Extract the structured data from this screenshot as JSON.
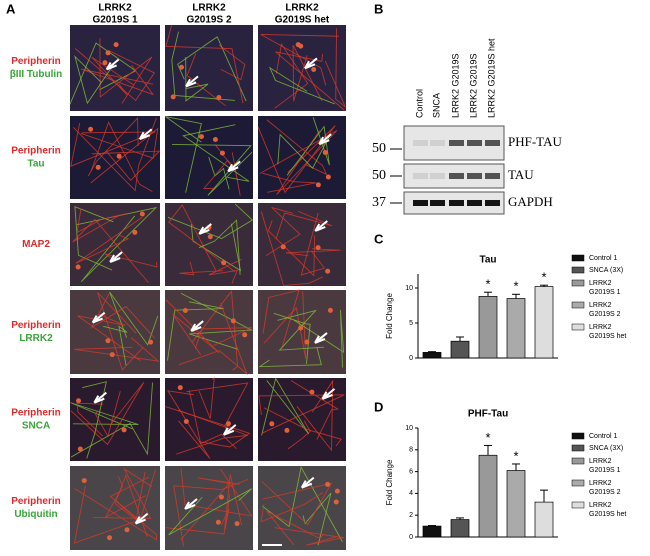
{
  "panel_a": {
    "label": "A",
    "columns": [
      [
        "LRRK2",
        "G2019S 1"
      ],
      [
        "LRRK2",
        "G2019S 2"
      ],
      [
        "LRRK2",
        "G2019S  het"
      ]
    ],
    "rows": [
      [
        {
          "text": "Peripherin",
          "color": "#d92b2b"
        },
        {
          "text": "βIII Tubulin",
          "color": "#3aa33a"
        }
      ],
      [
        {
          "text": "Peripherin",
          "color": "#d92b2b"
        },
        {
          "text": "Tau",
          "color": "#3aa33a"
        }
      ],
      [
        {
          "text": "MAP2",
          "color": "#d92b2b"
        }
      ],
      [
        {
          "text": "Peripherin",
          "color": "#d92b2b"
        },
        {
          "text": "LRRK2",
          "color": "#3aa33a"
        }
      ],
      [
        {
          "text": "Peripherin",
          "color": "#d92b2b"
        },
        {
          "text": "SNCA",
          "color": "#3aa33a"
        }
      ],
      [
        {
          "text": "Peripherin",
          "color": "#d92b2b"
        },
        {
          "text": "Ubiquitin",
          "color": "#3aa33a"
        }
      ]
    ]
  },
  "panel_b": {
    "label": "B",
    "lanes": [
      "Control",
      "SNCA",
      "LRRK2 G2019S",
      "LRRK2 G2019S",
      "LRRK2 G2019S het"
    ],
    "blots": [
      {
        "marker": "50",
        "name": "PHF-TAU"
      },
      {
        "marker": "50",
        "name": "TAU"
      },
      {
        "marker": "37",
        "name": "GAPDH"
      }
    ]
  },
  "chart_data": [
    {
      "type": "bar",
      "label": "C",
      "title": "Tau",
      "ylabel": "Fold Change",
      "categories": [
        [
          "Control 1"
        ],
        [
          "SNCA (3X)"
        ],
        [
          "LRRK2",
          "G2019S 1"
        ],
        [
          "LRRK2",
          "G2019S 2"
        ],
        [
          "LRRK2",
          "G2019S het"
        ]
      ],
      "values": [
        0.8,
        2.4,
        8.8,
        8.5,
        10.2
      ],
      "errors": [
        0.1,
        0.6,
        0.6,
        0.6,
        0.2
      ],
      "significance": [
        null,
        null,
        "*",
        "*",
        "*"
      ],
      "colors": [
        "#111111",
        "#555555",
        "#999999",
        "#aaaaaa",
        "#dddddd"
      ],
      "ylim": [
        0,
        12
      ],
      "yticks": [
        0,
        5,
        10
      ]
    },
    {
      "type": "bar",
      "label": "D",
      "title": "PHF-Tau",
      "ylabel": "Fold Change",
      "categories": [
        [
          "Control 1"
        ],
        [
          "SNCA (3X)"
        ],
        [
          "LRRK2",
          "G2019S 1"
        ],
        [
          "LRRK2",
          "G2019S 2"
        ],
        [
          "LRRK2",
          "G2019S het"
        ]
      ],
      "values": [
        1.0,
        1.6,
        7.5,
        6.1,
        3.2
      ],
      "errors": [
        0.05,
        0.15,
        0.9,
        0.6,
        1.1
      ],
      "significance": [
        null,
        null,
        "*",
        "*",
        null
      ],
      "colors": [
        "#111111",
        "#555555",
        "#999999",
        "#aaaaaa",
        "#dddddd"
      ],
      "ylim": [
        0,
        10
      ],
      "yticks": [
        0,
        2,
        4,
        6,
        8,
        10
      ]
    }
  ]
}
